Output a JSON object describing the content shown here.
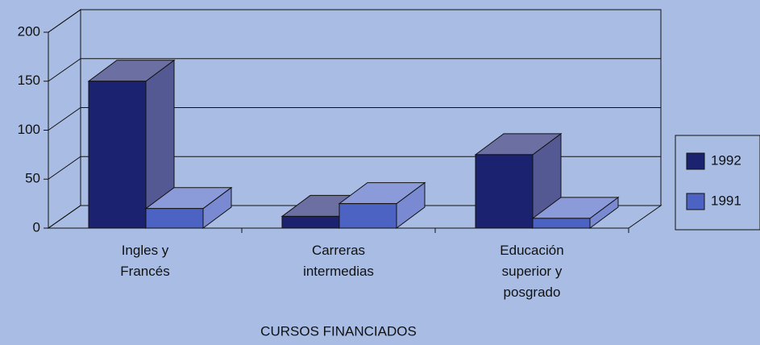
{
  "chart_data": {
    "type": "bar3d",
    "x_label": "CURSOS FINANCIADOS",
    "categories": [
      "Ingles y Francés",
      "Carreras intermedias",
      "Educación superior y posgrado"
    ],
    "series": [
      {
        "name": "1992",
        "color": "#1b2270",
        "values": [
          150,
          12,
          75
        ]
      },
      {
        "name": "1991",
        "color": "#4c63c4",
        "values": [
          20,
          25,
          10
        ]
      }
    ],
    "ylim": [
      0,
      200
    ],
    "yticks": [
      0,
      50,
      100,
      150,
      200
    ],
    "grid": true,
    "legend": "right"
  }
}
